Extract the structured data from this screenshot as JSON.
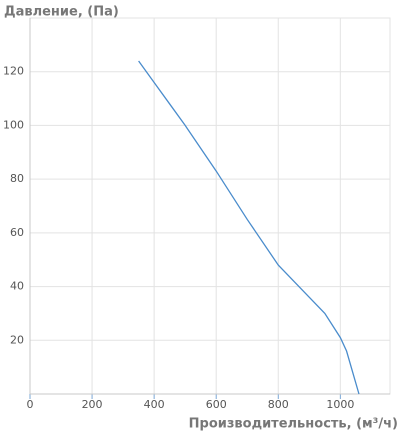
{
  "chart_data": {
    "type": "line",
    "title": "Давление, (Па)",
    "x_label": "Производительность, (м³/ч)",
    "x": [
      350,
      400,
      450,
      500,
      600,
      700,
      800,
      900,
      950,
      1000,
      1020,
      1060
    ],
    "values": [
      124,
      116,
      108,
      100,
      83,
      65,
      48,
      36,
      30,
      21,
      16,
      0
    ],
    "color": "#4a8ccc",
    "xlim": [
      0,
      1160
    ],
    "ylim": [
      0,
      140
    ],
    "xticks": [
      0,
      200,
      400,
      600,
      800,
      1000
    ],
    "yticks": [
      20,
      40,
      60,
      80,
      100,
      120
    ],
    "grid": true
  }
}
